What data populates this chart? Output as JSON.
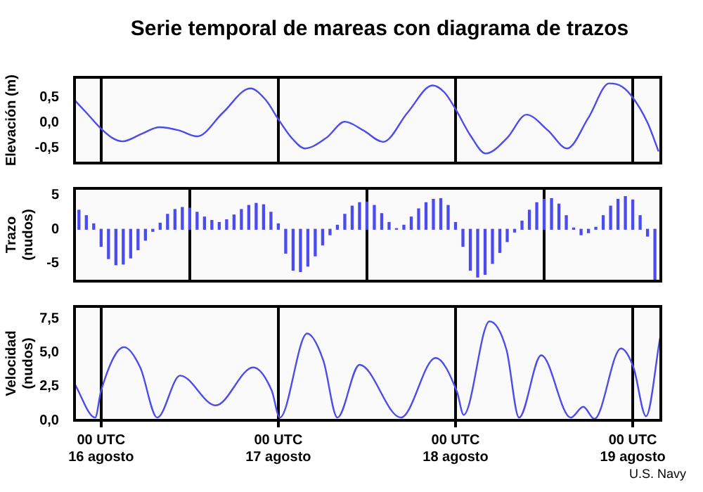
{
  "chart_data": [
    {
      "type": "line",
      "title": "Serie temporal de mareas con diagrama de trazos",
      "ylabel": "Elevación (m)",
      "color": "#4b4bef",
      "x": [
        "--08-15T20:24",
        "--08-15T22:00",
        "--08-16T00:00",
        "--08-16T01:30",
        "--08-16T02:54",
        "--08-16T05:30",
        "--08-16T07:54",
        "--08-16T10:30",
        "--08-16T13:00",
        "--08-16T16:30",
        "--08-16T20:12",
        "--08-16T22:18",
        "--08-17T00:00",
        "--08-17T01:48",
        "--08-17T03:36",
        "--08-17T06:30",
        "--08-17T09:00",
        "--08-17T11:30",
        "--08-17T14:12",
        "--08-17T17:30",
        "--08-17T20:54",
        "--08-17T22:30",
        "--08-18T00:00",
        "--08-18T02:00",
        "--08-18T04:06",
        "--08-18T07:00",
        "--08-18T09:36",
        "--08-18T12:30",
        "--08-18T15:06",
        "--08-18T18:00",
        "--08-18T20:48",
        "--08-18T22:30",
        "--08-19T00:00",
        "--08-19T02:00",
        "--08-19T03:30"
      ],
      "values": [
        0.45,
        0.2,
        -0.12,
        -0.3,
        -0.37,
        -0.22,
        -0.09,
        -0.15,
        -0.27,
        0.2,
        0.68,
        0.45,
        0.07,
        -0.3,
        -0.51,
        -0.3,
        0.02,
        -0.15,
        -0.38,
        0.2,
        0.74,
        0.6,
        0.27,
        -0.25,
        -0.61,
        -0.3,
        0.16,
        -0.15,
        -0.51,
        0.1,
        0.78,
        0.72,
        0.5,
        0.0,
        -0.57
      ],
      "xlim": [
        "--08-15T20:24",
        "--08-19T03:48"
      ],
      "xticks": [
        {
          "value": "--08-16T00:00",
          "label": null
        },
        {
          "value": "--08-17T00:00",
          "label": null
        },
        {
          "value": "--08-18T00:00",
          "label": null
        },
        {
          "value": "--08-19T00:00",
          "label": null
        }
      ],
      "ylim": [
        -0.8,
        0.9
      ],
      "yticks": [
        {
          "value": -0.5,
          "label": "-0,5"
        },
        {
          "value": 0,
          "label": "0,0"
        },
        {
          "value": 0.5,
          "label": "0,5"
        }
      ],
      "grid": "x",
      "tick_labels": "y"
    },
    {
      "type": "bar",
      "ylabel": "Trazo\n(nudos)",
      "color": "#4b4bef",
      "x": [
        "--08-15T21:00",
        "--08-15T22:00",
        "--08-15T23:00",
        "--08-16T00:00",
        "--08-16T01:00",
        "--08-16T02:00",
        "--08-16T03:00",
        "--08-16T04:00",
        "--08-16T05:00",
        "--08-16T06:00",
        "--08-16T07:00",
        "--08-16T08:00",
        "--08-16T09:00",
        "--08-16T10:00",
        "--08-16T11:00",
        "--08-16T12:00",
        "--08-16T13:00",
        "--08-16T14:00",
        "--08-16T15:00",
        "--08-16T16:00",
        "--08-16T17:00",
        "--08-16T18:00",
        "--08-16T19:00",
        "--08-16T20:00",
        "--08-16T21:00",
        "--08-16T22:00",
        "--08-16T23:00",
        "--08-17T00:00",
        "--08-17T01:00",
        "--08-17T02:00",
        "--08-17T03:00",
        "--08-17T04:00",
        "--08-17T05:00",
        "--08-17T06:00",
        "--08-17T07:00",
        "--08-17T08:00",
        "--08-17T09:00",
        "--08-17T10:00",
        "--08-17T11:00",
        "--08-17T12:00",
        "--08-17T13:00",
        "--08-17T14:00",
        "--08-17T15:00",
        "--08-17T16:00",
        "--08-17T17:00",
        "--08-17T18:00",
        "--08-17T19:00",
        "--08-17T20:00",
        "--08-17T21:00",
        "--08-17T22:00",
        "--08-17T23:00",
        "--08-18T00:00",
        "--08-18T01:00",
        "--08-18T02:00",
        "--08-18T03:00",
        "--08-18T04:00",
        "--08-18T05:00",
        "--08-18T06:00",
        "--08-18T07:00",
        "--08-18T08:00",
        "--08-18T09:00",
        "--08-18T10:00",
        "--08-18T11:00",
        "--08-18T12:00",
        "--08-18T13:00",
        "--08-18T14:00",
        "--08-18T15:00",
        "--08-18T16:00",
        "--08-18T17:00",
        "--08-18T18:00",
        "--08-18T19:00",
        "--08-18T20:00",
        "--08-18T21:00",
        "--08-18T22:00",
        "--08-18T23:00",
        "--08-19T00:00",
        "--08-19T01:00",
        "--08-19T02:00",
        "--08-19T03:00"
      ],
      "values": [
        2.8,
        2.0,
        0.8,
        -2.5,
        -4.3,
        -5.2,
        -5.1,
        -4.2,
        -3.0,
        -1.6,
        -0.3,
        0.9,
        2.2,
        2.9,
        3.2,
        3.1,
        2.5,
        1.8,
        1.3,
        1.0,
        1.4,
        2.1,
        2.9,
        3.5,
        3.8,
        3.6,
        2.5,
        0.8,
        -3.5,
        -6.0,
        -6.2,
        -5.4,
        -3.9,
        -2.3,
        -0.8,
        0.6,
        2.2,
        3.4,
        3.9,
        4.0,
        3.5,
        2.3,
        1.0,
        0.1,
        0.6,
        1.8,
        3.0,
        3.9,
        4.4,
        4.5,
        3.5,
        1.0,
        -2.5,
        -6.0,
        -7.0,
        -6.6,
        -5.0,
        -3.4,
        -1.8,
        -0.4,
        1.2,
        2.8,
        3.9,
        4.4,
        4.5,
        3.7,
        2.0,
        0.2,
        -0.8,
        -0.5,
        0.3,
        2.0,
        3.4,
        4.4,
        4.8,
        4.3,
        2.0,
        -1.0,
        -7.5
      ],
      "xlim": [
        "--08-15T20:24",
        "--08-19T03:48"
      ],
      "xticks": [
        {
          "value": "--08-16T00:00",
          "label": null
        },
        {
          "value": "--08-17T00:00",
          "label": null
        },
        {
          "value": "--08-18T00:00",
          "label": null
        },
        {
          "value": "--08-19T00:00",
          "label": null
        }
      ],
      "ylim": [
        -7.6,
        6.0
      ],
      "yticks": [
        -5,
        0,
        5
      ],
      "grid": "x",
      "tick_labels": "y"
    },
    {
      "type": "line",
      "ylabel": "Velocidad\n(nudos)",
      "color": "#4b4bef",
      "x": [
        "--08-15T20:24",
        "--08-15T23:12",
        "--08-16T00:00",
        "--08-16T03:06",
        "--08-16T05:18",
        "--08-16T07:36",
        "--08-16T10:42",
        "--08-16T15:30",
        "--08-16T20:36",
        "--08-16T23:06",
        "--08-17T00:12",
        "--08-17T03:54",
        "--08-17T06:06",
        "--08-17T08:00",
        "--08-17T11:00",
        "--08-17T16:36",
        "--08-17T21:18",
        "--08-18T00:12",
        "--08-18T01:06",
        "--08-18T04:36",
        "--08-18T06:54",
        "--08-18T08:36",
        "--08-18T11:36",
        "--08-18T15:36",
        "--08-18T17:18",
        "--08-18T18:48",
        "--08-18T22:24",
        "--08-19T00:06",
        "--08-19T01:48",
        "--08-19T03:42"
      ],
      "values": [
        2.7,
        0.2,
        2.2,
        5.4,
        3.9,
        0.2,
        3.3,
        1.1,
        3.9,
        2.2,
        0.2,
        6.4,
        4.4,
        0.2,
        4.1,
        0.2,
        4.6,
        2.1,
        0.4,
        7.3,
        5.2,
        0.2,
        4.8,
        0.2,
        1.0,
        0.1,
        5.3,
        3.9,
        0.3,
        6.1
      ],
      "xlim": [
        "--08-15T20:24",
        "--08-19T03:48"
      ],
      "xticks": [
        {
          "value": "--08-16T00:00",
          "label": "00 UTC\n16 agosto"
        },
        {
          "value": "--08-17T00:00",
          "label": "00 UTC\n17 agosto"
        },
        {
          "value": "--08-18T00:00",
          "label": "00 UTC\n18 agosto"
        },
        {
          "value": "--08-19T00:00",
          "label": "00 UTC\n19 agosto"
        }
      ],
      "ylim": [
        0,
        8.4
      ],
      "yticks": [
        {
          "value": 0,
          "label": "0,0"
        },
        {
          "value": 2.5,
          "label": "2,5"
        },
        {
          "value": 5,
          "label": "5,0"
        },
        {
          "value": 7.5,
          "label": "7,5"
        }
      ],
      "grid": "x",
      "annotations": [
        "U.S. Navy"
      ]
    }
  ]
}
